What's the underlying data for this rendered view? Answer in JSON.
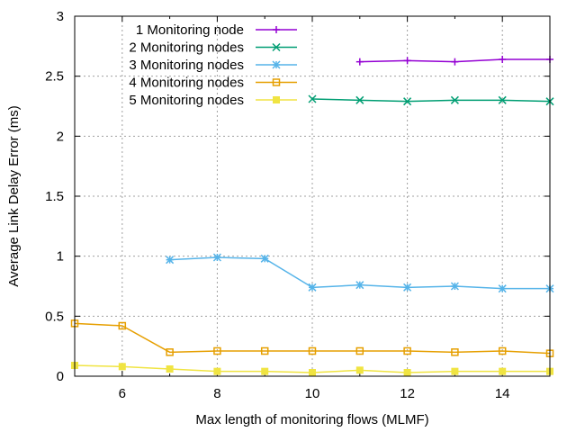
{
  "chart_data": {
    "type": "line",
    "title": "",
    "xlabel": "Max length of monitoring flows (MLMF)",
    "ylabel": "Average Link Delay Error (ms)",
    "xlim": [
      5,
      15
    ],
    "ylim": [
      0,
      3
    ],
    "xticks": [
      6,
      8,
      10,
      12,
      14
    ],
    "yticks": [
      0,
      0.5,
      1,
      1.5,
      2,
      2.5,
      3
    ],
    "ytick_labels": [
      "0",
      "0.5",
      "1",
      "1.5",
      "2",
      "2.5",
      "3"
    ],
    "grid": true,
    "legend_position": "top-left",
    "series": [
      {
        "name": "1 Monitoring node",
        "color": "#9400d3",
        "marker": "plus",
        "x": [
          11,
          12,
          13,
          14,
          15
        ],
        "values": [
          2.62,
          2.63,
          2.62,
          2.64,
          2.64
        ]
      },
      {
        "name": "2 Monitoring nodes",
        "color": "#009e73",
        "marker": "cross",
        "x": [
          10,
          11,
          12,
          13,
          14,
          15
        ],
        "values": [
          2.31,
          2.3,
          2.29,
          2.3,
          2.3,
          2.29
        ]
      },
      {
        "name": "3 Monitoring nodes",
        "color": "#56b4e9",
        "marker": "star",
        "x": [
          7,
          8,
          9,
          10,
          11,
          12,
          13,
          14,
          15
        ],
        "values": [
          0.97,
          0.99,
          0.98,
          0.74,
          0.76,
          0.74,
          0.75,
          0.73,
          0.73
        ]
      },
      {
        "name": "4 Monitoring nodes",
        "color": "#e69f00",
        "marker": "square",
        "x": [
          5,
          6,
          7,
          8,
          9,
          10,
          11,
          12,
          13,
          14,
          15
        ],
        "values": [
          0.44,
          0.42,
          0.2,
          0.21,
          0.21,
          0.21,
          0.21,
          0.21,
          0.2,
          0.21,
          0.19
        ]
      },
      {
        "name": "5 Monitoring nodes",
        "color": "#f0e442",
        "marker": "filled-square",
        "x": [
          5,
          6,
          7,
          8,
          9,
          10,
          11,
          12,
          13,
          14,
          15
        ],
        "values": [
          0.09,
          0.08,
          0.06,
          0.04,
          0.04,
          0.03,
          0.05,
          0.03,
          0.04,
          0.04,
          0.04
        ]
      }
    ]
  }
}
